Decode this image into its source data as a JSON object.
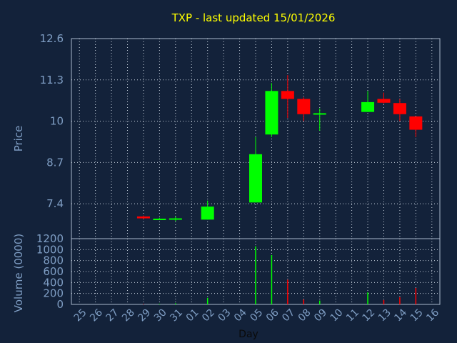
{
  "title": "TXP - last updated 15/01/2026",
  "colors": {
    "background": "#13223a",
    "title": "#ffff00",
    "axis_text": "#7f9ec4",
    "up": "#00ff00",
    "down": "#ff0000"
  },
  "chart_data": [
    {
      "type": "candlestick",
      "ylabel": "Price",
      "ylim": [
        6.3,
        12.6
      ],
      "yticks": [
        7.4,
        8.7,
        10,
        11.3,
        12.6
      ],
      "grid": true,
      "categories": [
        "25",
        "26",
        "27",
        "28",
        "29",
        "30",
        "31",
        "01",
        "02",
        "03",
        "04",
        "05",
        "06",
        "07",
        "08",
        "09",
        "10",
        "11",
        "12",
        "13",
        "14",
        "15",
        "16"
      ],
      "ohlc": [
        {
          "day": "29",
          "open": 7.0,
          "high": 7.03,
          "low": 6.92,
          "close": 6.94
        },
        {
          "day": "30",
          "open": 6.93,
          "high": 6.96,
          "low": 6.89,
          "close": 6.93
        },
        {
          "day": "31",
          "open": 6.92,
          "high": 7.0,
          "low": 6.85,
          "close": 6.94
        },
        {
          "day": "02",
          "open": 6.9,
          "high": 7.5,
          "low": 6.9,
          "close": 7.31
        },
        {
          "day": "05",
          "open": 7.44,
          "high": 9.5,
          "low": 7.44,
          "close": 8.96
        },
        {
          "day": "06",
          "open": 9.58,
          "high": 11.2,
          "low": 9.5,
          "close": 10.95
        },
        {
          "day": "07",
          "open": 10.95,
          "high": 11.45,
          "low": 10.1,
          "close": 10.7
        },
        {
          "day": "08",
          "open": 10.7,
          "high": 10.75,
          "low": 10.0,
          "close": 10.22
        },
        {
          "day": "09",
          "open": 10.22,
          "high": 10.4,
          "low": 9.7,
          "close": 10.25
        },
        {
          "day": "12",
          "open": 10.29,
          "high": 10.95,
          "low": 10.29,
          "close": 10.6
        },
        {
          "day": "13",
          "open": 10.7,
          "high": 10.9,
          "low": 10.55,
          "close": 10.58
        },
        {
          "day": "14",
          "open": 10.57,
          "high": 10.7,
          "low": 10.0,
          "close": 10.22
        },
        {
          "day": "15",
          "open": 10.15,
          "high": 10.15,
          "low": 9.5,
          "close": 9.73
        }
      ]
    },
    {
      "type": "bar",
      "ylabel": "Volume (0000)",
      "xlabel": "Day",
      "ylim": [
        0,
        1200
      ],
      "yticks": [
        0,
        200,
        400,
        600,
        800,
        1000,
        1200
      ],
      "grid": true,
      "categories": [
        "25",
        "26",
        "27",
        "28",
        "29",
        "30",
        "31",
        "01",
        "02",
        "03",
        "04",
        "05",
        "06",
        "07",
        "08",
        "09",
        "10",
        "11",
        "12",
        "13",
        "14",
        "15",
        "16"
      ],
      "bars": [
        {
          "day": "29",
          "value": 8,
          "direction": "down"
        },
        {
          "day": "30",
          "value": 10,
          "direction": "up"
        },
        {
          "day": "31",
          "value": 20,
          "direction": "up"
        },
        {
          "day": "02",
          "value": 120,
          "direction": "up"
        },
        {
          "day": "05",
          "value": 1060,
          "direction": "up"
        },
        {
          "day": "06",
          "value": 900,
          "direction": "up"
        },
        {
          "day": "07",
          "value": 450,
          "direction": "down"
        },
        {
          "day": "08",
          "value": 90,
          "direction": "down"
        },
        {
          "day": "09",
          "value": 70,
          "direction": "up"
        },
        {
          "day": "12",
          "value": 220,
          "direction": "up"
        },
        {
          "day": "13",
          "value": 80,
          "direction": "down"
        },
        {
          "day": "14",
          "value": 130,
          "direction": "down"
        },
        {
          "day": "15",
          "value": 300,
          "direction": "down"
        }
      ]
    }
  ]
}
